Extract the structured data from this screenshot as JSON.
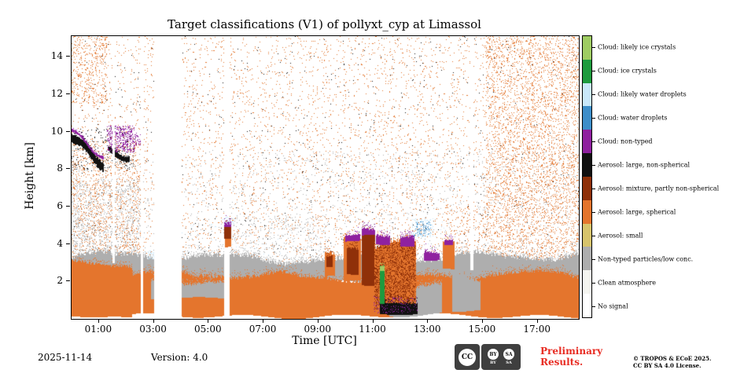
{
  "title": "Target classifications (V1) of pollyxt_cyp at Limassol",
  "footer": {
    "date": "2025-11-14",
    "version": "Version: 4.0",
    "preliminary_line1": "Preliminary",
    "preliminary_line2": "Results.",
    "copyright_line1": "© TROPOS & ECoE 2025.",
    "copyright_line2": "CC BY SA 4.0 License.",
    "cc": {
      "cc": "CC",
      "by": "BY",
      "sa": "SA"
    }
  },
  "chart_data": {
    "type": "heatmap",
    "title": "Target classifications (V1) of pollyxt_cyp at Limassol",
    "xlabel": "Time [UTC]",
    "ylabel": "Height [km]",
    "x_range_hours": [
      0,
      18.5
    ],
    "y_range_km": [
      0,
      15.1
    ],
    "x_ticks": [
      {
        "hour": 1,
        "label": "01:00"
      },
      {
        "hour": 3,
        "label": "03:00"
      },
      {
        "hour": 5,
        "label": "05:00"
      },
      {
        "hour": 7,
        "label": "07:00"
      },
      {
        "hour": 9,
        "label": "09:00"
      },
      {
        "hour": 11,
        "label": "11:00"
      },
      {
        "hour": 13,
        "label": "13:00"
      },
      {
        "hour": 15,
        "label": "15:00"
      },
      {
        "hour": 17,
        "label": "17:00"
      }
    ],
    "y_ticks": [
      2,
      4,
      6,
      8,
      10,
      12,
      14
    ],
    "grid": false,
    "legend_position": "right",
    "classes": [
      {
        "key": "cloud_likely_ice",
        "label": "Cloud: likely ice crystals",
        "color": "#9fcc63"
      },
      {
        "key": "cloud_ice",
        "label": "Cloud: ice crystals",
        "color": "#1e9b3e"
      },
      {
        "key": "cloud_likely_water",
        "label": "Cloud: likely water droplets",
        "color": "#c9e8fa"
      },
      {
        "key": "cloud_water",
        "label": "Cloud: water droplets",
        "color": "#3e8ec9"
      },
      {
        "key": "cloud_nontyped",
        "label": "Cloud: non-typed",
        "color": "#8f219f"
      },
      {
        "key": "aerosol_large_nonspherical",
        "label": "Aerosol: large, non-spherical",
        "color": "#111111"
      },
      {
        "key": "aerosol_mixture",
        "label": "Aerosol: mixture, partly non-spherical",
        "color": "#8f3009"
      },
      {
        "key": "aerosol_large_spherical",
        "label": "Aerosol: large, spherical",
        "color": "#e4752d"
      },
      {
        "key": "aerosol_small",
        "label": "Aerosol: small",
        "color": "#d7c46c"
      },
      {
        "key": "nontyped_low_conc",
        "label": "Non-typed particles/low conc.",
        "color": "#aeaeae"
      },
      {
        "key": "clean_atmosphere",
        "label": "Clean atmosphere",
        "color": "#f5f5f0"
      },
      {
        "key": "no_signal",
        "label": "No signal",
        "color": "#ffffff"
      }
    ],
    "features": [
      {
        "type": "speckle",
        "class": "aerosol_large_spherical",
        "t": [
          0,
          18.5
        ],
        "h": [
          2.8,
          15.1
        ],
        "density": 0.03
      },
      {
        "type": "speckle",
        "class": "nontyped_low_conc",
        "t": [
          0,
          18.5
        ],
        "h": [
          2.8,
          9.0
        ],
        "density": 0.02
      },
      {
        "type": "speckle",
        "class": "aerosol_large_nonspherical",
        "t": [
          0,
          18.5
        ],
        "h": [
          2.8,
          15.1
        ],
        "density": 0.0035
      },
      {
        "type": "speckle",
        "class": "aerosol_large_spherical",
        "t": [
          15.1,
          18.5
        ],
        "h": [
          0.3,
          15.1
        ],
        "density": 0.1
      },
      {
        "type": "speckle",
        "class": "aerosol_large_spherical",
        "t": [
          0,
          1.3
        ],
        "h": [
          11.5,
          15.1
        ],
        "density": 0.1
      },
      {
        "type": "speckle",
        "class": "aerosol_large_spherical",
        "t": [
          0,
          2.6
        ],
        "h": [
          3.2,
          9.5
        ],
        "density": 0.07
      },
      {
        "type": "speckle",
        "class": "nontyped_low_conc",
        "t": [
          0,
          2.6
        ],
        "h": [
          3.2,
          7.5
        ],
        "density": 0.1
      },
      {
        "type": "speckle",
        "class": "nontyped_low_conc",
        "t": [
          5.9,
          9.3
        ],
        "h": [
          2.9,
          5.5
        ],
        "density": 0.045
      },
      {
        "type": "speckle",
        "class": "aerosol_large_spherical",
        "t": [
          13.6,
          15.1
        ],
        "h": [
          2.5,
          6.0
        ],
        "density": 0.05
      },
      {
        "type": "speckle",
        "class": "cloud_likely_water",
        "t": [
          0,
          18.5
        ],
        "h": [
          3.3,
          5.2
        ],
        "density": 0.004
      },
      {
        "type": "speckle",
        "class": "aerosol_large_nonspherical",
        "t": [
          0,
          2.3
        ],
        "h": [
          7.9,
          10.2
        ],
        "density": 0.05
      },
      {
        "type": "band",
        "class": "nontyped_low_conc",
        "t": [
          0,
          18.5
        ],
        "h": [
          1.9,
          3.25
        ],
        "jitter": 0.45
      },
      {
        "type": "band",
        "class": "aerosol_large_spherical",
        "t": [
          0,
          2.2
        ],
        "h": [
          0.12,
          2.95
        ],
        "jitter": 0.3
      },
      {
        "type": "band",
        "class": "aerosol_large_spherical",
        "t": [
          0,
          18.5
        ],
        "h": [
          0.12,
          2.3
        ],
        "jitter": 0.4
      },
      {
        "type": "band",
        "class": "nontyped_low_conc",
        "t": [
          2.9,
          5.6
        ],
        "h": [
          1.1,
          2.05
        ],
        "jitter": 0.3
      },
      {
        "type": "band",
        "class": "nontyped_low_conc",
        "t": [
          11.6,
          13.5
        ],
        "h": [
          0.25,
          2.0
        ],
        "jitter": 0.5
      },
      {
        "type": "band",
        "class": "nontyped_low_conc",
        "t": [
          13.9,
          14.9
        ],
        "h": [
          0.4,
          2.2
        ],
        "jitter": 0.4
      },
      {
        "type": "band",
        "class": "aerosol_large_spherical",
        "t": [
          9.25,
          9.6
        ],
        "h": [
          2.3,
          3.6
        ],
        "jitter": 0.3
      },
      {
        "type": "band",
        "class": "aerosol_mixture",
        "t": [
          9.3,
          9.5
        ],
        "h": [
          2.7,
          3.35
        ],
        "jitter": 0.2
      },
      {
        "type": "band",
        "class": "aerosol_large_spherical",
        "t": [
          9.95,
          10.55
        ],
        "h": [
          2.0,
          4.2
        ],
        "jitter": 0.35
      },
      {
        "type": "band",
        "class": "aerosol_mixture",
        "t": [
          10.05,
          10.45
        ],
        "h": [
          2.4,
          3.9
        ],
        "jitter": 0.3
      },
      {
        "type": "band",
        "class": "cloud_nontyped",
        "t": [
          10.0,
          10.5
        ],
        "h": [
          4.1,
          4.5
        ],
        "jitter": 0.2
      },
      {
        "type": "band",
        "class": "aerosol_mixture",
        "t": [
          10.6,
          11.05
        ],
        "h": [
          1.8,
          4.5
        ],
        "jitter": 0.3
      },
      {
        "type": "band",
        "class": "cloud_nontyped",
        "t": [
          10.6,
          11.05
        ],
        "h": [
          4.45,
          4.85
        ],
        "jitter": 0.2
      },
      {
        "type": "band",
        "class": "aerosol_large_spherical",
        "t": [
          11.05,
          12.55
        ],
        "h": [
          0.6,
          4.0
        ],
        "jitter": 0.5
      },
      {
        "type": "speckle",
        "class": "aerosol_mixture",
        "t": [
          11.05,
          12.55
        ],
        "h": [
          0.5,
          4.1
        ],
        "density": 0.45
      },
      {
        "type": "band",
        "class": "cloud_nontyped",
        "t": [
          11.1,
          11.6
        ],
        "h": [
          4.0,
          4.55
        ],
        "jitter": 0.25
      },
      {
        "type": "band",
        "class": "cloud_nontyped",
        "t": [
          12.0,
          12.5
        ],
        "h": [
          3.8,
          4.3
        ],
        "jitter": 0.25
      },
      {
        "type": "band",
        "class": "aerosol_large_nonspherical",
        "t": [
          11.25,
          12.6
        ],
        "h": [
          0.22,
          0.8
        ],
        "jitter": 0.2
      },
      {
        "type": "speckle",
        "class": "cloud_nontyped",
        "t": [
          11.0,
          12.6
        ],
        "h": [
          0.3,
          1.2
        ],
        "density": 0.12
      },
      {
        "type": "band",
        "class": "cloud_ice",
        "t": [
          11.27,
          11.4
        ],
        "h": [
          0.8,
          2.6
        ],
        "jitter": 0.08
      },
      {
        "type": "band",
        "class": "cloud_likely_ice",
        "t": [
          11.27,
          11.4
        ],
        "h": [
          2.55,
          2.8
        ],
        "jitter": 0.05
      },
      {
        "type": "band",
        "class": "cloud_nontyped",
        "t": [
          12.85,
          13.4
        ],
        "h": [
          3.1,
          3.65
        ],
        "jitter": 0.25
      },
      {
        "type": "speckle",
        "class": "cloud_water",
        "t": [
          12.5,
          13.1
        ],
        "h": [
          4.4,
          5.2
        ],
        "density": 0.25
      },
      {
        "type": "speckle",
        "class": "cloud_likely_water",
        "t": [
          12.4,
          13.2
        ],
        "h": [
          4.3,
          5.35
        ],
        "density": 0.15
      },
      {
        "type": "band",
        "class": "aerosol_large_spherical",
        "t": [
          13.55,
          13.95
        ],
        "h": [
          2.6,
          4.0
        ],
        "jitter": 0.3
      },
      {
        "type": "band",
        "class": "cloud_nontyped",
        "t": [
          13.6,
          13.9
        ],
        "h": [
          3.95,
          4.3
        ],
        "jitter": 0.15
      },
      {
        "type": "streak",
        "class": "aerosol_large_nonspherical",
        "p0": [
          0.0,
          9.7
        ],
        "p1": [
          1.15,
          8.15
        ],
        "thickness": 0.45
      },
      {
        "type": "streak",
        "class": "cloud_nontyped",
        "p0": [
          0.0,
          10.0
        ],
        "p1": [
          1.15,
          8.55
        ],
        "thickness": 0.15
      },
      {
        "type": "streak",
        "class": "aerosol_large_nonspherical",
        "p0": [
          1.35,
          8.95
        ],
        "p1": [
          2.1,
          8.55
        ],
        "thickness": 0.3
      },
      {
        "type": "speckle",
        "class": "cloud_nontyped",
        "t": [
          1.3,
          2.3
        ],
        "h": [
          8.9,
          10.3
        ],
        "density": 0.4
      },
      {
        "type": "speckle",
        "class": "cloud_nontyped",
        "t": [
          2.3,
          2.55
        ],
        "h": [
          9.3,
          9.95
        ],
        "density": 0.3
      },
      {
        "type": "speckle",
        "class": "cloud_likely_water",
        "t": [
          2.78,
          3.03
        ],
        "h": [
          3.2,
          3.7
        ],
        "density": 0.3
      },
      {
        "type": "band",
        "class": "aerosol_large_spherical",
        "t": [
          5.6,
          5.8
        ],
        "h": [
          3.85,
          4.35
        ],
        "jitter": 0.15,
        "after_gaps": true
      },
      {
        "type": "band",
        "class": "aerosol_mixture",
        "t": [
          5.58,
          5.82
        ],
        "h": [
          4.25,
          4.95
        ],
        "jitter": 0.15,
        "after_gaps": true
      },
      {
        "type": "band",
        "class": "cloud_nontyped",
        "t": [
          5.58,
          5.82
        ],
        "h": [
          4.9,
          5.12
        ],
        "jitter": 0.1,
        "after_gaps": true
      },
      {
        "type": "speckle",
        "class": "cloud_likely_water",
        "t": [
          5.5,
          5.92
        ],
        "h": [
          5.05,
          5.45
        ],
        "density": 0.25,
        "after_gaps": true
      }
    ],
    "no_signal_gaps": [
      {
        "t": [
          3.02,
          4.05
        ],
        "h": [
          0,
          15.1
        ]
      },
      {
        "t": [
          5.58,
          5.8
        ],
        "h": [
          0,
          15.1
        ]
      },
      {
        "t": [
          2.55,
          2.66
        ],
        "h": [
          0,
          15.1
        ]
      },
      {
        "t": [
          1.52,
          1.61
        ],
        "h": [
          2.95,
          15.1
        ]
      },
      {
        "t": [
          14.55,
          14.68
        ],
        "h": [
          2.6,
          15.1
        ]
      }
    ]
  }
}
